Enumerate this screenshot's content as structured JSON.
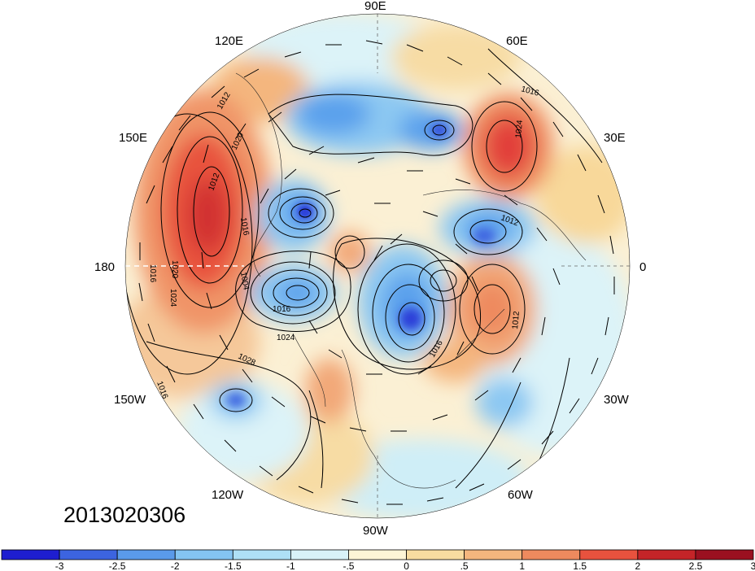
{
  "map": {
    "projection": "north-polar-stereographic",
    "longitude_labels": [
      {
        "id": "90e",
        "text": "90E"
      },
      {
        "id": "60e",
        "text": "60E"
      },
      {
        "id": "30e",
        "text": "30E"
      },
      {
        "id": "0",
        "text": "0"
      },
      {
        "id": "30w",
        "text": "30W"
      },
      {
        "id": "60w",
        "text": "60W"
      },
      {
        "id": "90w",
        "text": "90W"
      },
      {
        "id": "120w",
        "text": "120W"
      },
      {
        "id": "150w",
        "text": "150W"
      },
      {
        "id": "180",
        "text": "180"
      },
      {
        "id": "150e",
        "text": "150E"
      },
      {
        "id": "120e",
        "text": "120E"
      }
    ],
    "contour_labels": [
      "1012",
      "1016",
      "1020",
      "1024",
      "1012",
      "1016",
      "1016",
      "1020",
      "1024",
      "1004",
      "1012",
      "1016",
      "1024",
      "1028",
      "1016",
      "1012",
      "1016"
    ],
    "anomaly_colors": {
      "neg3": "#1414d2",
      "neg25": "#3a6de6",
      "neg2": "#5aa0ec",
      "neg15": "#8cc8f2",
      "neg1": "#b6e2f5",
      "neg05": "#dcf3f8",
      "pos05": "#fdf3d2",
      "pos1": "#f8d89a",
      "pos15": "#f2a878",
      "pos2": "#ec7a56",
      "pos25": "#e2403a",
      "pos3": "#b01822"
    }
  },
  "timestamp": "2013020306",
  "colorbar": {
    "labels": [
      "-3",
      "-2.5",
      "-2",
      "-1.5",
      "-1",
      "-.5",
      "0",
      ".5",
      "1",
      "1.5",
      "2",
      "2.5",
      "3"
    ],
    "colors": [
      "#1e1ed0",
      "#3c64e0",
      "#5a9aea",
      "#84c4f2",
      "#aee0f6",
      "#d8f2f8",
      "#fdf5d6",
      "#f8dca0",
      "#f4b67e",
      "#ee8a5e",
      "#e8523e",
      "#c42428",
      "#9a1020"
    ]
  }
}
